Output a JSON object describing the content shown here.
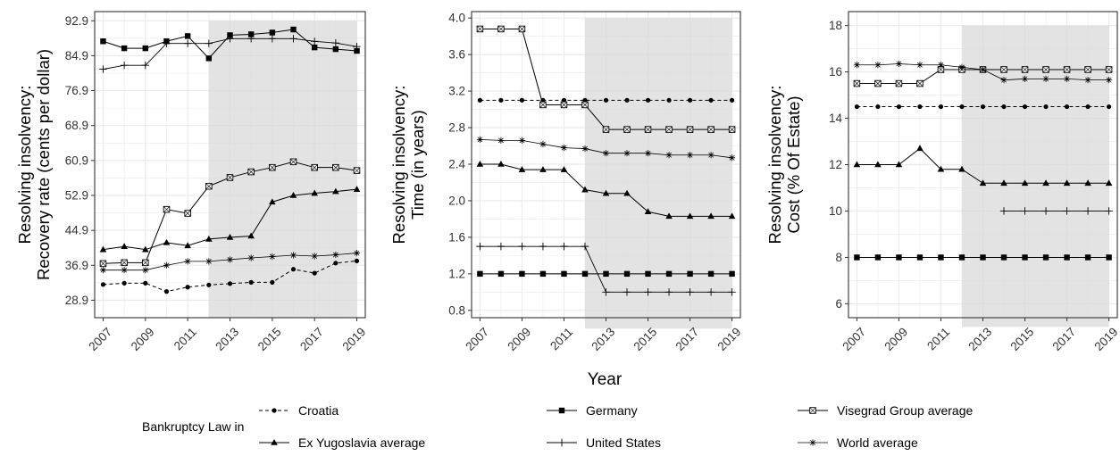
{
  "x_axis_title": "Year",
  "legend": {
    "title": "Bankruptcy Law in",
    "entries": [
      {
        "key": "croatia",
        "label": "Croatia"
      },
      {
        "key": "germany",
        "label": "Germany"
      },
      {
        "key": "visegrad",
        "label": "Visegrad Group average"
      },
      {
        "key": "exyu",
        "label": "Ex Yugoslavia average"
      },
      {
        "key": "us",
        "label": "United States"
      },
      {
        "key": "world",
        "label": "World average"
      }
    ]
  },
  "colors": {
    "line": "#000000",
    "grid": "#ebebeb",
    "panel_border": "#333333",
    "shade": "#d9d9d9"
  },
  "chart_data": [
    {
      "type": "line",
      "ylabel": [
        "Resolving insolvency:",
        "Recovery rate (cents per dollar)"
      ],
      "x": [
        2007,
        2008,
        2009,
        2010,
        2011,
        2012,
        2013,
        2014,
        2015,
        2016,
        2017,
        2018,
        2019
      ],
      "x_ticks": [
        "2007",
        "2009",
        "2011",
        "2013",
        "2015",
        "2017",
        "2019"
      ],
      "xlim": [
        2006.6,
        2019.4
      ],
      "ylim": [
        24.9,
        95.0
      ],
      "y_ticks": [
        "28.9",
        "36.9",
        "44.9",
        "52.9",
        "60.9",
        "68.9",
        "76.9",
        "84.9",
        "92.9"
      ],
      "shaded_x": [
        2012,
        2019
      ],
      "series": [
        {
          "key": "croatia",
          "values": [
            32.5,
            32.8,
            32.8,
            30.9,
            31.9,
            32.4,
            32.7,
            33.0,
            33.0,
            36.0,
            35.1,
            37.4,
            37.9
          ]
        },
        {
          "key": "germany",
          "values": [
            88.2,
            86.6,
            86.6,
            88.2,
            89.4,
            84.3,
            89.6,
            89.8,
            90.2,
            90.9,
            86.8,
            86.4,
            86.0
          ]
        },
        {
          "key": "visegrad",
          "values": [
            37.3,
            37.5,
            37.5,
            49.7,
            48.8,
            55.0,
            57.0,
            58.3,
            59.3,
            60.6,
            59.3,
            59.3,
            58.6
          ]
        },
        {
          "key": "exyu",
          "values": [
            40.5,
            41.2,
            40.5,
            42.1,
            41.4,
            42.9,
            43.3,
            43.6,
            51.4,
            52.9,
            53.4,
            53.8,
            54.3
          ]
        },
        {
          "key": "us",
          "values": [
            81.8,
            82.7,
            82.7,
            87.7,
            87.7,
            87.7,
            88.8,
            88.8,
            88.8,
            88.8,
            88.2,
            87.8,
            87.0
          ]
        },
        {
          "key": "world",
          "values": [
            35.8,
            35.8,
            35.8,
            36.9,
            37.8,
            37.8,
            38.2,
            38.6,
            38.9,
            39.2,
            39.0,
            39.3,
            39.7
          ]
        }
      ]
    },
    {
      "type": "line",
      "ylabel": [
        "Resolving insolvency:",
        "Time (in years)"
      ],
      "x": [
        2007,
        2008,
        2009,
        2010,
        2011,
        2012,
        2013,
        2014,
        2015,
        2016,
        2017,
        2018,
        2019
      ],
      "x_ticks": [
        "2007",
        "2009",
        "2011",
        "2013",
        "2015",
        "2017",
        "2019"
      ],
      "xlim": [
        2006.6,
        2019.4
      ],
      "ylim": [
        0.72,
        4.07
      ],
      "y_ticks": [
        "0.8",
        "1.2",
        "1.6",
        "2.0",
        "2.4",
        "2.8",
        "3.2",
        "3.6",
        "4.0"
      ],
      "shaded_x": [
        2012,
        2019
      ],
      "series": [
        {
          "key": "croatia",
          "values": [
            3.1,
            3.1,
            3.1,
            3.1,
            3.1,
            3.1,
            3.1,
            3.1,
            3.1,
            3.1,
            3.1,
            3.1,
            3.1
          ]
        },
        {
          "key": "germany",
          "values": [
            1.2,
            1.2,
            1.2,
            1.2,
            1.2,
            1.2,
            1.2,
            1.2,
            1.2,
            1.2,
            1.2,
            1.2,
            1.2
          ]
        },
        {
          "key": "visegrad",
          "values": [
            3.88,
            3.88,
            3.88,
            3.05,
            3.05,
            3.05,
            2.78,
            2.78,
            2.78,
            2.78,
            2.78,
            2.78,
            2.78
          ]
        },
        {
          "key": "exyu",
          "values": [
            2.4,
            2.4,
            2.34,
            2.34,
            2.34,
            2.12,
            2.08,
            2.08,
            1.88,
            1.83,
            1.83,
            1.83,
            1.83
          ]
        },
        {
          "key": "us",
          "values": [
            1.5,
            1.5,
            1.5,
            1.5,
            1.5,
            1.5,
            1.0,
            1.0,
            1.0,
            1.0,
            1.0,
            1.0,
            1.0
          ]
        },
        {
          "key": "world",
          "values": [
            2.67,
            2.66,
            2.66,
            2.62,
            2.58,
            2.57,
            2.52,
            2.52,
            2.52,
            2.5,
            2.5,
            2.5,
            2.47
          ]
        }
      ]
    },
    {
      "type": "line",
      "ylabel": [
        "Resolving insolvency:",
        "Cost (% Of Estate)"
      ],
      "x": [
        2007,
        2008,
        2009,
        2010,
        2011,
        2012,
        2013,
        2014,
        2015,
        2016,
        2017,
        2018,
        2019
      ],
      "x_ticks": [
        "2007",
        "2009",
        "2011",
        "2013",
        "2015",
        "2017",
        "2019"
      ],
      "xlim": [
        2006.6,
        2019.4
      ],
      "ylim": [
        5.4,
        18.6
      ],
      "y_ticks": [
        "6",
        "8",
        "10",
        "12",
        "14",
        "16",
        "18"
      ],
      "shaded_x": [
        2012,
        2019
      ],
      "series": [
        {
          "key": "croatia",
          "values": [
            14.5,
            14.5,
            14.5,
            14.5,
            14.5,
            14.5,
            14.5,
            14.5,
            14.5,
            14.5,
            14.5,
            14.5,
            14.5
          ]
        },
        {
          "key": "germany",
          "values": [
            8,
            8,
            8,
            8,
            8,
            8,
            8,
            8,
            8,
            8,
            8,
            8,
            8
          ]
        },
        {
          "key": "visegrad",
          "values": [
            15.5,
            15.5,
            15.5,
            15.5,
            16.1,
            16.1,
            16.1,
            16.1,
            16.1,
            16.1,
            16.1,
            16.1,
            16.1
          ]
        },
        {
          "key": "exyu",
          "values": [
            12.0,
            12.0,
            12.0,
            12.7,
            11.8,
            11.8,
            11.2,
            11.2,
            11.2,
            11.2,
            11.2,
            11.2,
            11.2
          ]
        },
        {
          "key": "us",
          "values": [
            null,
            null,
            null,
            null,
            null,
            null,
            null,
            10,
            10,
            10,
            10,
            10,
            10
          ]
        },
        {
          "key": "world",
          "values": [
            16.3,
            16.3,
            16.35,
            16.3,
            16.3,
            16.2,
            16.1,
            15.65,
            15.7,
            15.7,
            15.7,
            15.65,
            15.65
          ]
        }
      ]
    }
  ]
}
